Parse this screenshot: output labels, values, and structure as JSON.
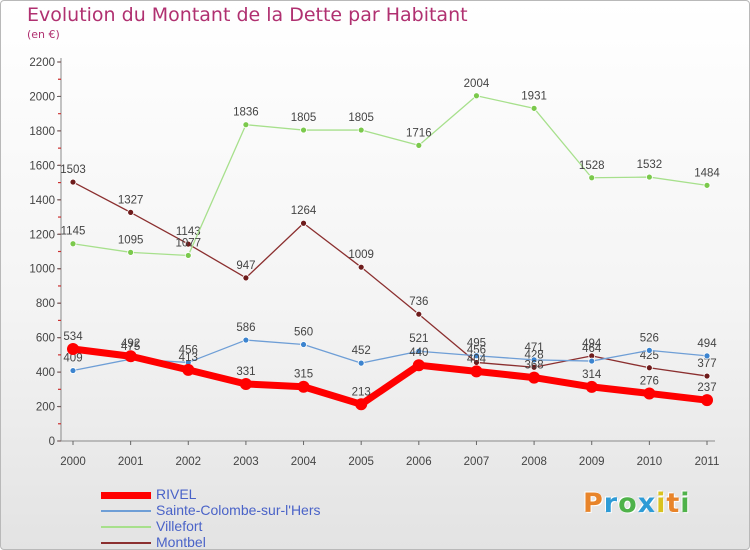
{
  "title": "Evolution du Montant de la Dette par Habitant",
  "subtitle": "(en €)",
  "logo": {
    "letters": [
      "P",
      "r",
      "o",
      "x",
      "i",
      "t",
      "i"
    ],
    "colors": [
      "#e8842a",
      "#2e9bd6",
      "#4fb24a",
      "#2e9bd6",
      "#d9c21f",
      "#e8842a",
      "#4fb24a"
    ]
  },
  "chart_data": {
    "type": "line",
    "title": "Evolution du Montant de la Dette par Habitant",
    "subtitle": "(en €)",
    "categories": [
      "2000",
      "2001",
      "2002",
      "2003",
      "2004",
      "2005",
      "2006",
      "2007",
      "2008",
      "2009",
      "2010",
      "2011"
    ],
    "ylim": [
      0,
      2200
    ],
    "yticks": [
      0,
      200,
      400,
      600,
      800,
      1000,
      1200,
      1400,
      1600,
      1800,
      2000,
      2200
    ],
    "grid": false,
    "legend_position": "bottom",
    "series": [
      {
        "name": "RIVEL",
        "color": "#ff0000",
        "marker": "#ff0000",
        "values": [
          534,
          492,
          413,
          331,
          315,
          213,
          440,
          404,
          368,
          314,
          276,
          237
        ],
        "labels": [
          "534",
          "492",
          "413",
          "331",
          "315",
          "213",
          "440",
          "404",
          "368",
          "314",
          "276",
          "237"
        ]
      },
      {
        "name": "Sainte-Colombe-sur-l'Hers",
        "color": "#6e9ed6",
        "marker": "#3c84cf",
        "values": [
          409,
          475,
          456,
          586,
          560,
          452,
          521,
          495,
          471,
          464,
          526,
          494
        ],
        "labels": [
          "409",
          "475",
          "456",
          "586",
          "560",
          "452",
          "521",
          "495",
          "471",
          "464",
          "526",
          "494"
        ]
      },
      {
        "name": "Villefort",
        "color": "#a7e08c",
        "marker": "#7bc94c",
        "values": [
          1145,
          1095,
          1077,
          1836,
          1805,
          1805,
          1716,
          2004,
          1931,
          1528,
          1532,
          1484
        ],
        "labels": [
          "1145",
          "1095",
          "1077",
          "1836",
          "1805",
          "1805",
          "1716",
          "2004",
          "1931",
          "1528",
          "1532",
          "1484"
        ]
      },
      {
        "name": "Montbel",
        "color": "#8b2f2f",
        "marker": "#6e1c1c",
        "values": [
          1503,
          1327,
          1143,
          947,
          1264,
          1009,
          736,
          456,
          428,
          494,
          425,
          377
        ],
        "labels": [
          "1503",
          "1327",
          "1143",
          "947",
          "1264",
          "1009",
          "736",
          "456",
          "428",
          "494",
          "425",
          "377"
        ]
      }
    ]
  }
}
